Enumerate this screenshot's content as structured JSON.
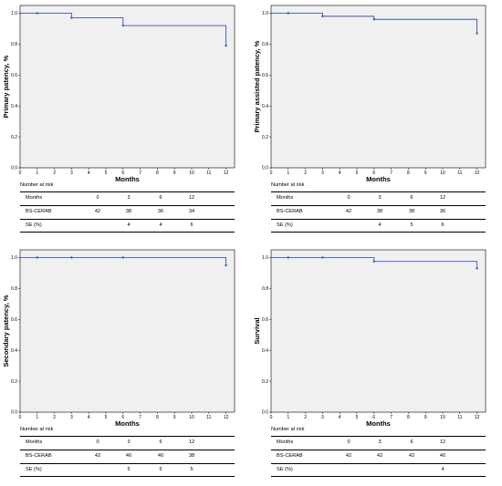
{
  "colors": {
    "curve": "#3b55b5",
    "plot_bg": "#f0f0f0",
    "axis": "#000000"
  },
  "chart_data": [
    {
      "type": "line",
      "step": true,
      "ylabel": "Primary patency, %",
      "xlabel": "Months",
      "xlim": [
        0,
        12.5
      ],
      "ylim": [
        0,
        1.05
      ],
      "x_ticks": [
        "0",
        "1",
        "2",
        "3",
        "4",
        "5",
        "6",
        "7",
        "8",
        "9",
        "10",
        "11",
        "12"
      ],
      "y_ticks": [
        "0.0",
        "0.2",
        "0.4",
        "0.6",
        "0.8",
        "1.0"
      ],
      "series": [
        {
          "x": [
            0,
            1,
            3,
            6,
            12
          ],
          "y": [
            1.0,
            1.0,
            0.97,
            0.92,
            0.79
          ]
        }
      ],
      "risk_table": {
        "title": "Number at risk",
        "header": {
          "label": "Months",
          "values": [
            "0",
            "3",
            "6",
            "12"
          ]
        },
        "rows": [
          {
            "label": "BS-CERAB",
            "values": [
              "42",
              "38",
              "36",
              "34"
            ]
          },
          {
            "label": "SE (%)",
            "values": [
              "",
              "4",
              "4",
              "6"
            ]
          }
        ]
      }
    },
    {
      "type": "line",
      "step": true,
      "ylabel": "Primary assisted patency, %",
      "xlabel": "Months",
      "xlim": [
        0,
        12.5
      ],
      "ylim": [
        0,
        1.05
      ],
      "x_ticks": [
        "0",
        "1",
        "2",
        "3",
        "4",
        "5",
        "6",
        "7",
        "8",
        "9",
        "10",
        "11",
        "12"
      ],
      "y_ticks": [
        "0.0",
        "0.2",
        "0.4",
        "0.6",
        "0.8",
        "1.0"
      ],
      "series": [
        {
          "x": [
            0,
            1,
            3,
            6,
            12
          ],
          "y": [
            1.0,
            1.0,
            0.98,
            0.96,
            0.87
          ]
        }
      ],
      "risk_table": {
        "title": "Number at risk",
        "header": {
          "label": "Months",
          "values": [
            "0",
            "3",
            "6",
            "12"
          ]
        },
        "rows": [
          {
            "label": "BS-CERAB",
            "values": [
              "42",
              "38",
              "38",
              "36"
            ]
          },
          {
            "label": "SE (%)",
            "values": [
              "",
              "4",
              "5",
              "6"
            ]
          }
        ]
      }
    },
    {
      "type": "line",
      "step": true,
      "ylabel": "Secondary patency, %",
      "xlabel": "Months",
      "xlim": [
        0,
        12.5
      ],
      "ylim": [
        0,
        1.05
      ],
      "x_ticks": [
        "0",
        "1",
        "2",
        "3",
        "4",
        "5",
        "6",
        "7",
        "8",
        "9",
        "10",
        "11",
        "12"
      ],
      "y_ticks": [
        "0.0",
        "0.2",
        "0.4",
        "0.6",
        "0.8",
        "1.0"
      ],
      "series": [
        {
          "x": [
            0,
            1,
            3,
            6,
            12
          ],
          "y": [
            1.0,
            1.0,
            1.0,
            1.0,
            0.95
          ]
        }
      ],
      "risk_table": {
        "title": "Number at risk",
        "header": {
          "label": "Months",
          "values": [
            "0",
            "3",
            "6",
            "12"
          ]
        },
        "rows": [
          {
            "label": "BS-CERAB",
            "values": [
              "42",
              "40",
              "40",
              "38"
            ]
          },
          {
            "label": "SE (%)",
            "values": [
              "",
              "5",
              "5",
              "5"
            ]
          }
        ]
      }
    },
    {
      "type": "line",
      "step": true,
      "ylabel": "Survival",
      "xlabel": "Months",
      "xlim": [
        0,
        12.5
      ],
      "ylim": [
        0,
        1.05
      ],
      "x_ticks": [
        "0",
        "1",
        "2",
        "3",
        "4",
        "5",
        "6",
        "7",
        "8",
        "9",
        "10",
        "11",
        "12"
      ],
      "y_ticks": [
        "0.0",
        "0.2",
        "0.4",
        "0.6",
        "0.8",
        "1.0"
      ],
      "series": [
        {
          "x": [
            0,
            1,
            3,
            6,
            12
          ],
          "y": [
            1.0,
            1.0,
            1.0,
            0.975,
            0.93
          ]
        }
      ],
      "risk_table": {
        "title": "Number at risk",
        "header": {
          "label": "Months",
          "values": [
            "0",
            "3",
            "6",
            "12"
          ]
        },
        "rows": [
          {
            "label": "BS-CERAB",
            "values": [
              "42",
              "42",
              "42",
              "40"
            ]
          },
          {
            "label": "SE (%)",
            "values": [
              "",
              "",
              "",
              "4"
            ]
          }
        ]
      }
    }
  ]
}
